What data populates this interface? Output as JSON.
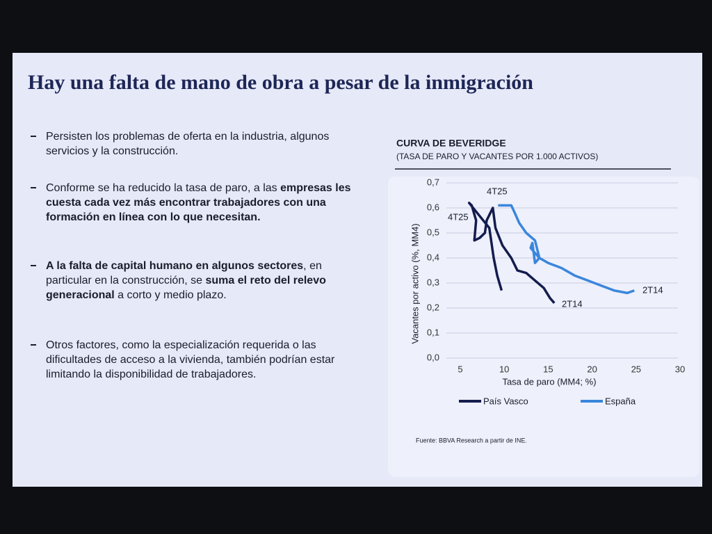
{
  "slide": {
    "title": "Hay una falta de mano de obra a pesar de la inmigración",
    "bullets": [
      [
        {
          "text": "Persisten los problemas de oferta en la industria, algunos servicios y la construcción.",
          "bold": false
        }
      ],
      [
        {
          "text": "Conforme se ha reducido la tasa de paro, a las ",
          "bold": false
        },
        {
          "text": "empresas les cuesta cada vez más encontrar trabajadores con una formación en línea con lo que necesitan.",
          "bold": true
        }
      ],
      [
        {
          "text": "A la falta de capital humano en algunos sectores",
          "bold": true
        },
        {
          "text": ", en particular en la construcción, se ",
          "bold": false
        },
        {
          "text": "suma el reto del relevo generacional",
          "bold": true
        },
        {
          "text": " a corto y medio plazo.",
          "bold": false
        }
      ],
      [
        {
          "text": "Otros factores, como la especialización requerida o las dificultades de acceso a la vivienda, también podrían estar limitando la disponibilidad de trabajadores.",
          "bold": false
        }
      ]
    ],
    "source": "Fuente: BBVA Research a partir de INE."
  },
  "chart_data": {
    "type": "line",
    "title": "CURVA DE BEVERIDGE",
    "subtitle": "(TASA DE PARO Y VACANTES POR 1.000 ACTIVOS)",
    "x_label": "Tasa de paro (MM4; %)",
    "y_label": "Vacantes por activo (%, MM4)",
    "xlim": [
      5,
      30
    ],
    "xticks": [
      5,
      10,
      15,
      20,
      25,
      30
    ],
    "ylim": [
      0,
      0.7
    ],
    "yticks": [
      {
        "value": 0,
        "label": "0,0"
      },
      {
        "value": 0.1,
        "label": "0,1"
      },
      {
        "value": 0.2,
        "label": "0,2"
      },
      {
        "value": 0.3,
        "label": "0,3"
      },
      {
        "value": 0.4,
        "label": "0,4"
      },
      {
        "value": 0.5,
        "label": "0,5"
      },
      {
        "value": 0.6,
        "label": "0,6"
      },
      {
        "value": 0.7,
        "label": "0,7"
      }
    ],
    "grid": true,
    "series": [
      {
        "name": "País Vasco",
        "color": "#141c4e",
        "x": [
          15.7,
          15.2,
          14.5,
          13.5,
          12.5,
          11.5,
          10.8,
          9.8,
          9.0,
          8.7,
          8.0,
          7.8,
          7.2,
          6.6,
          6.8,
          6.3,
          6.0,
          8.3,
          8.8,
          9.2,
          9.7
        ],
        "values": [
          0.22,
          0.24,
          0.28,
          0.31,
          0.34,
          0.35,
          0.4,
          0.45,
          0.52,
          0.6,
          0.55,
          0.5,
          0.48,
          0.47,
          0.55,
          0.61,
          0.62,
          0.52,
          0.4,
          0.33,
          0.27
        ]
      },
      {
        "name": "España",
        "color": "#3a86dc",
        "x": [
          24.8,
          24.0,
          22.5,
          21.0,
          19.5,
          18.0,
          16.5,
          15.0,
          14.0,
          13.0,
          13.2,
          13.5,
          14.0,
          13.5,
          12.5,
          11.7,
          11.2,
          10.8,
          10.0,
          9.3
        ],
        "values": [
          0.27,
          0.26,
          0.27,
          0.29,
          0.31,
          0.33,
          0.36,
          0.38,
          0.4,
          0.44,
          0.46,
          0.38,
          0.4,
          0.47,
          0.5,
          0.54,
          0.58,
          0.61,
          0.61,
          0.61
        ]
      }
    ],
    "annotations": [
      "4T25",
      "4T25",
      "2T14",
      "2T14"
    ]
  }
}
